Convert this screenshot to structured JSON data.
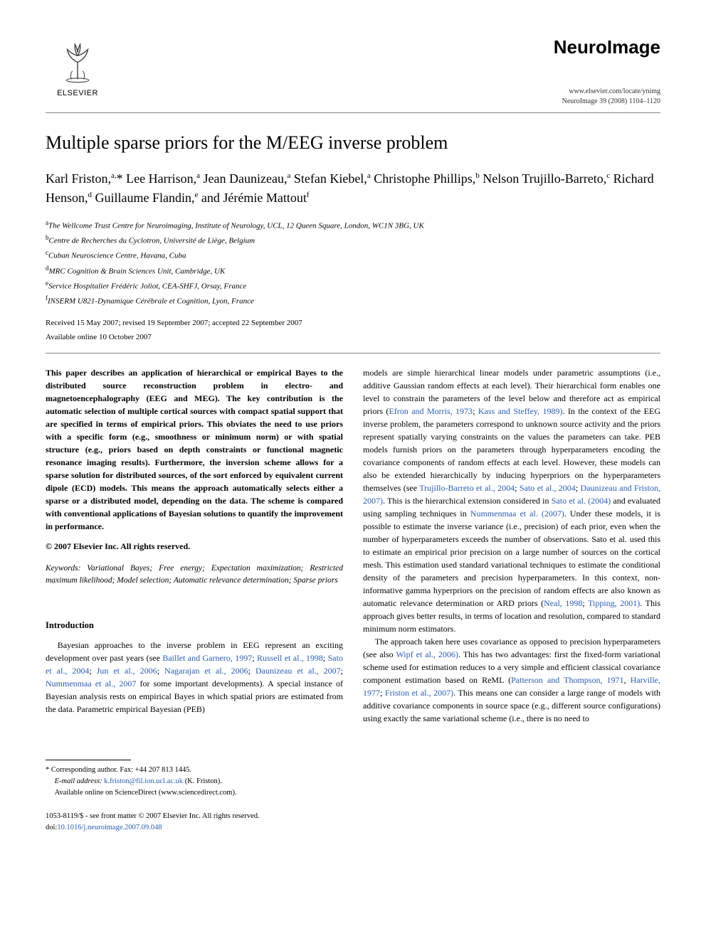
{
  "header": {
    "publisher": "ELSEVIER",
    "journal_name": "NeuroImage",
    "journal_url": "www.elsevier.com/locate/ynimg",
    "citation": "NeuroImage 39 (2008) 1104–1120"
  },
  "title": "Multiple sparse priors for the M/EEG inverse problem",
  "authors_html": "Karl Friston,<sup>a,</sup>* Lee Harrison,<sup>a</sup> Jean Daunizeau,<sup>a</sup> Stefan Kiebel,<sup>a</sup> Christophe Phillips,<sup>b</sup> Nelson Trujillo-Barreto,<sup>c</sup> Richard Henson,<sup>d</sup> Guillaume Flandin,<sup>e</sup> and Jérémie Mattout<sup>f</sup>",
  "affiliations": [
    {
      "sup": "a",
      "text": "The Wellcome Trust Centre for Neuroimaging, Institute of Neurology, UCL, 12 Queen Square, London, WC1N 3BG, UK"
    },
    {
      "sup": "b",
      "text": "Centre de Recherches du Cyclotron, Université de Liège, Belgium"
    },
    {
      "sup": "c",
      "text": "Cuban Neuroscience Centre, Havana, Cuba"
    },
    {
      "sup": "d",
      "text": "MRC Cognition & Brain Sciences Unit, Cambridge, UK"
    },
    {
      "sup": "e",
      "text": "Service Hospitalier Frédéric Joliot, CEA-SHFJ, Orsay, France"
    },
    {
      "sup": "f",
      "text": "INSERM U821-Dynamique Cérébrale et Cognition, Lyon, France"
    }
  ],
  "dates": {
    "line1": "Received 15 May 2007; revised 19 September 2007; accepted 22 September 2007",
    "line2": "Available online 10 October 2007"
  },
  "abstract": "This paper describes an application of hierarchical or empirical Bayes to the distributed source reconstruction problem in electro- and magnetoencephalography (EEG and MEG). The key contribution is the automatic selection of multiple cortical sources with compact spatial support that are specified in terms of empirical priors. This obviates the need to use priors with a specific form (e.g., smoothness or minimum norm) or with spatial structure (e.g., priors based on depth constraints or functional magnetic resonance imaging results). Furthermore, the inversion scheme allows for a sparse solution for distributed sources, of the sort enforced by equivalent current dipole (ECD) models. This means the approach automatically selects either a sparse or a distributed model, depending on the data. The scheme is compared with conventional applications of Bayesian solutions to quantify the improvement in performance.",
  "copyright": "© 2007 Elsevier Inc. All rights reserved.",
  "keywords_label": "Keywords:",
  "keywords": "Variational Bayes; Free energy; Expectation maximization; Restricted maximum likelihood; Model selection; Automatic relevance determination; Sparse priors",
  "intro_head": "Introduction",
  "intro_para1": "Bayesian approaches to the inverse problem in EEG represent an exciting development over past years (see Baillet and Garnero, 1997; Russell et al., 1998; Sato et al., 2004; Jun et al., 2006; Nagarajan et al., 2006; Daunizeau et al., 2007; Nummenmaa et al., 2007 for some important developments). A special instance of Bayesian analysis rests on empirical Bayes in which spatial priors are estimated from the data. Parametric empirical Bayesian (PEB)",
  "col2_para1": "models are simple hierarchical linear models under parametric assumptions (i.e., additive Gaussian random effects at each level). Their hierarchical form enables one level to constrain the parameters of the level below and therefore act as empirical priors (Efron and Morris, 1973; Kass and Steffey, 1989). In the context of the EEG inverse problem, the parameters correspond to unknown source activity and the priors represent spatially varying constraints on the values the parameters can take. PEB models furnish priors on the parameters through hyperparameters encoding the covariance components of random effects at each level. However, these models can also be extended hierarchically by inducing hyperpriors on the hyperparameters themselves (see Trujillo-Barreto et al., 2004; Sato et al., 2004; Daunizeau and Friston, 2007). This is the hierarchical extension considered in Sato et al. (2004) and evaluated using sampling techniques in Nummenmaa et al. (2007). Under these models, it is possible to estimate the inverse variance (i.e., precision) of each prior, even when the number of hyperparameters exceeds the number of observations. Sato et al. used this to estimate an empirical prior precision on a large number of sources on the cortical mesh. This estimation used standard variational techniques to estimate the conditional density of the parameters and precision hyperparameters. In this context, non-informative gamma hyperpriors on the precision of random effects are also known as automatic relevance determination or ARD priors (Neal, 1998; Tipping, 2001). This approach gives better results, in terms of location and resolution, compared to standard minimum norm estimators.",
  "col2_para2": "The approach taken here uses covariance as opposed to precision hyperparameters (see also Wipf et al., 2006). This has two advantages: first the fixed-form variational scheme used for estimation reduces to a very simple and efficient classical covariance component estimation based on ReML (Patterson and Thompson, 1971, Harville, 1977; Friston et al., 2007). This means one can consider a large range of models with additive covariance components in source space (e.g., different source configurations) using exactly the same variational scheme (i.e., there is no need to",
  "footnote": {
    "corresponding": "* Corresponding author. Fax: +44 207 813 1445.",
    "email_label": "E-mail address:",
    "email": "k.friston@fil.ion.ucl.ac.uk",
    "email_who": "(K. Friston).",
    "sciencedirect": "Available online on ScienceDirect (www.sciencedirect.com)."
  },
  "bottom": {
    "issn": "1053-8119/$ - see front matter © 2007 Elsevier Inc. All rights reserved.",
    "doi_label": "doi:",
    "doi": "10.1016/j.neuroimage.2007.09.048"
  },
  "link_color": "#2a5db0"
}
